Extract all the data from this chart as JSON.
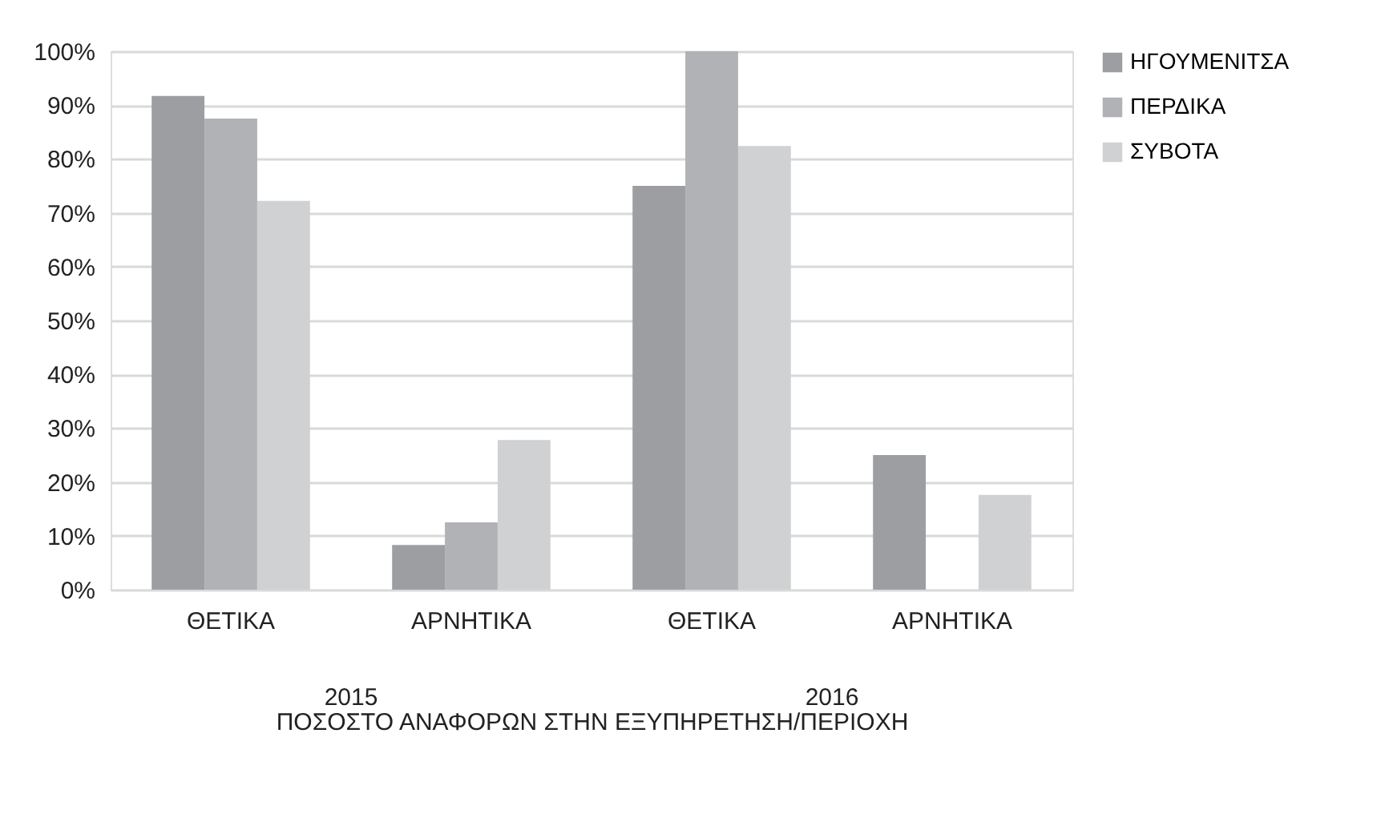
{
  "chart_data": {
    "type": "bar",
    "categories": [
      "ΘΕΤΙΚΑ",
      "ΑΡΝΗΤΙΚΑ",
      "ΘΕΤΙΚΑ",
      "ΑΡΝΗΤΙΚΑ"
    ],
    "xlabel": "ΠΟΣΟΣΤΟ ΑΝΑΦΟΡΩΝ ΣΤΗΝ ΕΞΥΠΗΡΕΤΗΣΗ/ΠΕΡΙΟΧΗ",
    "annotations": [
      "2015",
      "2016"
    ],
    "series": [
      {
        "name": "ΗΓΟΥΜΕΝΙΤΣΑ",
        "color": "#9d9ea2",
        "values": [
          91.7,
          8.3,
          75,
          25
        ]
      },
      {
        "name": "ΠΕΡΔΙΚΑ",
        "color": "#b1b2b5",
        "values": [
          87.5,
          12.5,
          100,
          0
        ]
      },
      {
        "name": "ΣΥΒΟΤΑ",
        "color": "#d0d1d3",
        "values": [
          72.2,
          27.8,
          82.4,
          17.6
        ]
      }
    ],
    "ylim": [
      0,
      100
    ],
    "yticks": [
      {
        "value": 0,
        "label": "0%"
      },
      {
        "value": 10,
        "label": "10%"
      },
      {
        "value": 20,
        "label": "20%"
      },
      {
        "value": 30,
        "label": "30%"
      },
      {
        "value": 40,
        "label": "40%"
      },
      {
        "value": 50,
        "label": "50%"
      },
      {
        "value": 60,
        "label": "60%"
      },
      {
        "value": 70,
        "label": "70%"
      },
      {
        "value": 80,
        "label": "80%"
      },
      {
        "value": 90,
        "label": "90%"
      },
      {
        "value": 100,
        "label": "100%"
      }
    ],
    "grid": "y",
    "legend": "right"
  }
}
